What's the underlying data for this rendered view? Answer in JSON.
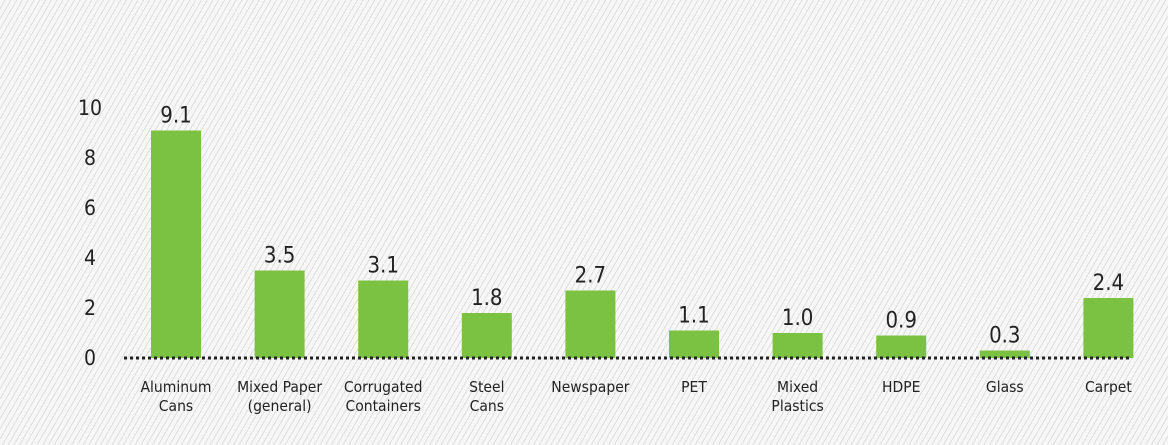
{
  "chart_data": {
    "type": "bar",
    "title": "",
    "xlabel": "",
    "ylabel": "",
    "ylim": [
      0,
      10
    ],
    "yticks": [
      0,
      2,
      4,
      6,
      8,
      10
    ],
    "grid": false,
    "categories": [
      [
        "Aluminum",
        "Cans"
      ],
      [
        "Mixed Paper",
        "(general)"
      ],
      [
        "Corrugated",
        "Containers"
      ],
      [
        "Steel",
        "Cans"
      ],
      [
        "Newspaper"
      ],
      [
        "PET"
      ],
      [
        "Mixed",
        "Plastics"
      ],
      [
        "HDPE"
      ],
      [
        "Glass"
      ],
      [
        "Carpet"
      ]
    ],
    "values": [
      9.1,
      3.5,
      3.1,
      1.8,
      2.7,
      1.1,
      1.0,
      0.9,
      0.3,
      2.4
    ],
    "value_labels": [
      "9.1",
      "3.5",
      "3.1",
      "1.8",
      "2.7",
      "1.1",
      "1.0",
      "0.9",
      "0.3",
      "2.4"
    ],
    "bar_color": "#7cc242",
    "text_color": "#222222"
  }
}
